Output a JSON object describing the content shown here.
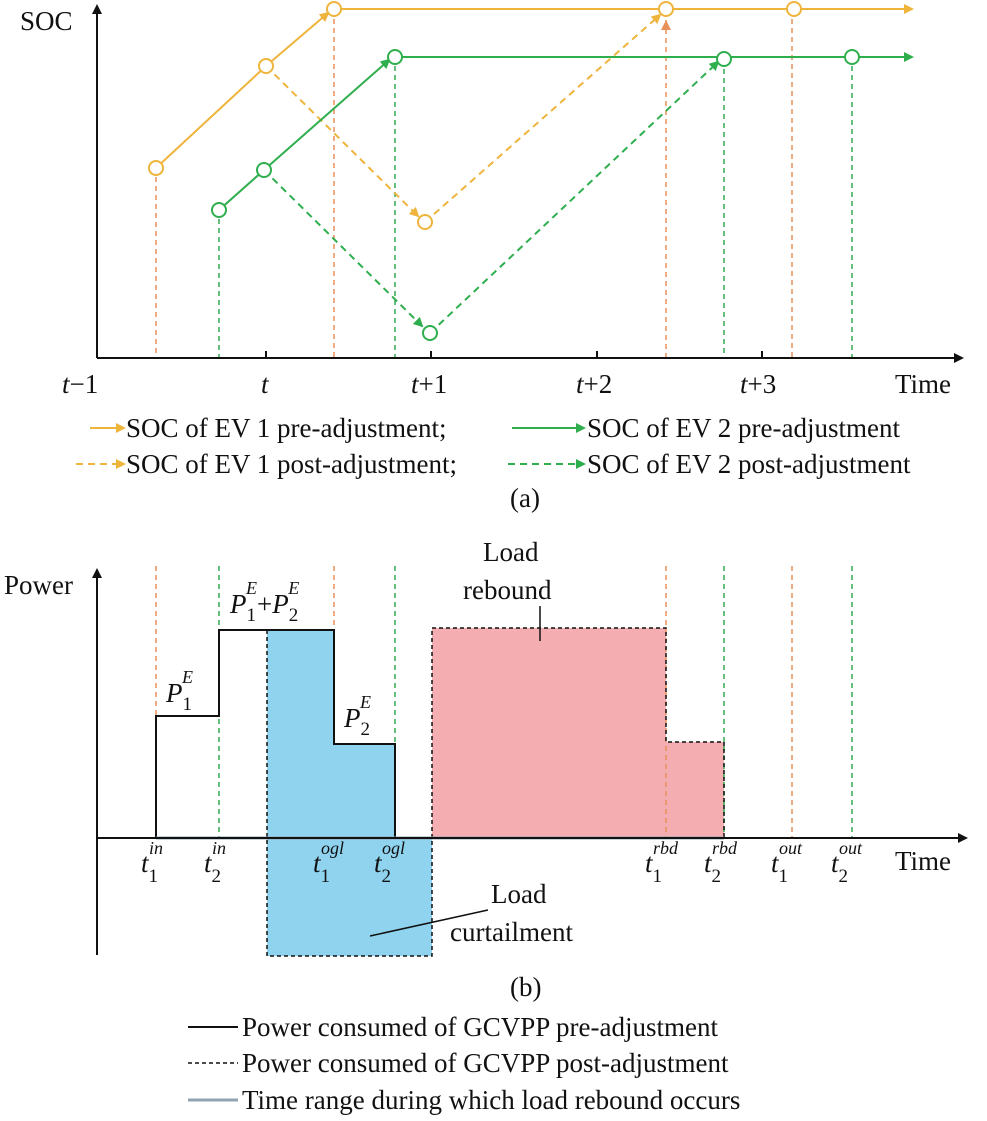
{
  "colors": {
    "ev1": "#eeb43c",
    "ev2": "#2fae4e",
    "ev1_guide": "#e8915a",
    "ev2_guide": "#33a852",
    "curtail_fill": "#8fd3ee",
    "rebound_fill": "#f4aeb2",
    "rebound_range": "#8fa3b1"
  },
  "panel_a": {
    "y_label": "SOC",
    "x_label": "Time",
    "ticks": [
      {
        "t": "t",
        "suffix": "−1"
      },
      {
        "t": "t",
        "suffix": ""
      },
      {
        "t": "t",
        "suffix": "+1"
      },
      {
        "t": "t",
        "suffix": "+2"
      },
      {
        "t": "t",
        "suffix": "+3"
      }
    ],
    "legend_row1": [
      {
        "text": "SOC of EV 1 pre-adjustment;"
      },
      {
        "text": "SOC of EV 2 pre-adjustment"
      }
    ],
    "legend_row2": [
      {
        "text": "SOC of EV 1 post-adjustment;"
      },
      {
        "text": "SOC of EV 2 post-adjustment"
      }
    ],
    "caption": "(a)"
  },
  "panel_b": {
    "y_label": "Power",
    "x_label": "Time",
    "p_symbol": "P",
    "e_sup": "E",
    "sub_1": "1",
    "sub_2": "2",
    "plus": "+",
    "ticks": [
      {
        "t": "t",
        "sub": "1",
        "sup": "in"
      },
      {
        "t": "t",
        "sub": "2",
        "sup": "in"
      },
      {
        "t": "t",
        "sub": "1",
        "sup": "ogl"
      },
      {
        "t": "t",
        "sub": "2",
        "sup": "ogl"
      },
      {
        "t": "t",
        "sub": "1",
        "sup": "rbd"
      },
      {
        "t": "t",
        "sub": "2",
        "sup": "rbd"
      },
      {
        "t": "t",
        "sub": "1",
        "sup": "out"
      },
      {
        "t": "t",
        "sub": "2",
        "sup": "out"
      }
    ],
    "rebound_label": [
      "Load",
      "rebound"
    ],
    "curtail_label": [
      "Load",
      "curtailment"
    ],
    "caption": "(b)",
    "legend": [
      {
        "text": "Power consumed of GCVPP pre-adjustment"
      },
      {
        "text": "Power consumed of GCVPP post-adjustment"
      },
      {
        "text": "Time range during which load rebound occurs"
      }
    ]
  }
}
